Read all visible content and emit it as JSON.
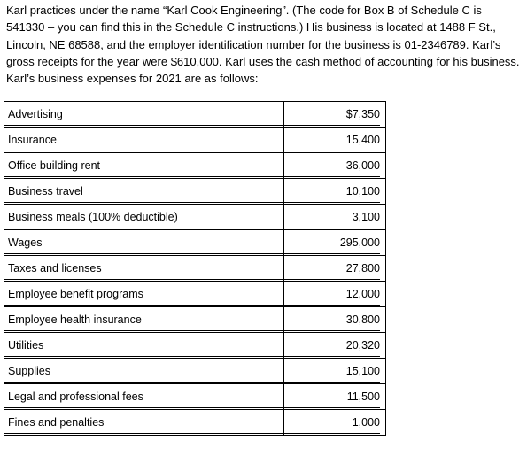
{
  "intro": {
    "text": "Karl practices under the name “Karl Cook Engineering”. (The code for Box B of Schedule C is 541330 – you can find this in the Schedule C instructions.) His business is located at 1488 F St., Lincoln, NE 68588, and the employer identification number for the business is 01-2346789. Karl’s gross receipts for the year were $610,000. Karl uses the cash method of accounting for his business. Karl’s business expenses for 2021 are as follows:"
  },
  "expenses": [
    {
      "label": "Advertising",
      "amount": "$7,350"
    },
    {
      "label": "Insurance",
      "amount": "15,400"
    },
    {
      "label": "Office building rent",
      "amount": "36,000"
    },
    {
      "label": "Business travel",
      "amount": "10,100"
    },
    {
      "label": "Business meals (100% deductible)",
      "amount": "3,100"
    },
    {
      "label": "Wages",
      "amount": "295,000"
    },
    {
      "label": "Taxes and licenses",
      "amount": "27,800"
    },
    {
      "label": "Employee benefit programs",
      "amount": "12,000"
    },
    {
      "label": "Employee health insurance",
      "amount": "30,800"
    },
    {
      "label": "Utilities",
      "amount": "20,320"
    },
    {
      "label": "Supplies",
      "amount": "15,100"
    },
    {
      "label": "Legal and professional fees",
      "amount": "11,500"
    },
    {
      "label": "Fines and penalties",
      "amount": "1,000"
    }
  ]
}
